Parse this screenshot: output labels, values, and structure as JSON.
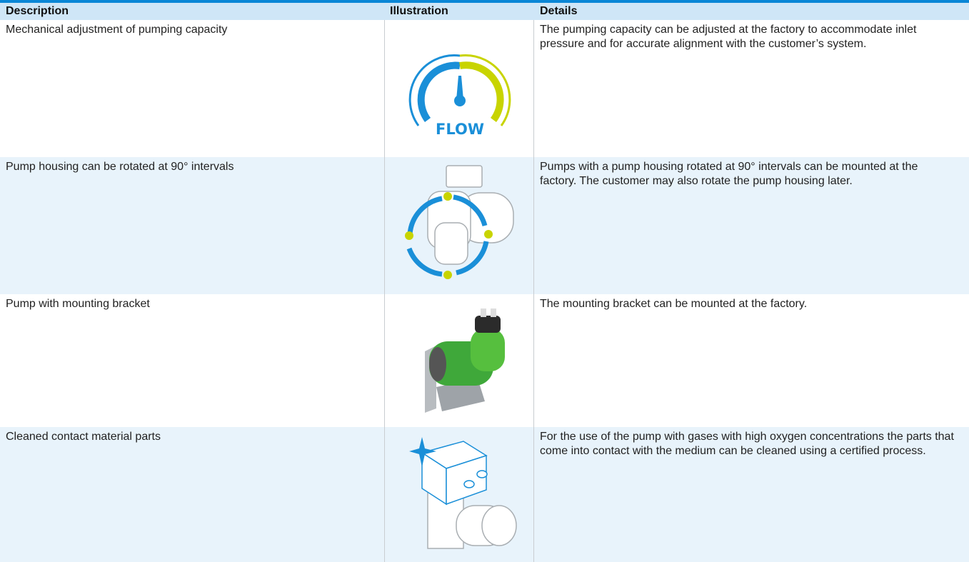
{
  "table": {
    "header": [
      "Description",
      "Illustration",
      "Details"
    ],
    "rows": [
      {
        "description": "Mechanical adjustment of pumping capacity",
        "icon_label": "FLOW",
        "details": "The pumping capacity can be adjusted at the factory to accommodate inlet pressure and for accurate alignment with the customer’s system."
      },
      {
        "description": "Pump housing can be rotated at 90° intervals",
        "details": "Pumps with a pump housing rotated at 90° intervals can be mounted at the factory. The customer may also rotate the pump housing later."
      },
      {
        "description": "Pump with mounting bracket",
        "details": "The mounting bracket can be mounted at the factory."
      },
      {
        "description": "Cleaned contact material parts",
        "details": "For the use of the pump with gases with high oxygen concentrations the parts that come into contact with the medium can be cleaned using a certified process."
      }
    ]
  }
}
